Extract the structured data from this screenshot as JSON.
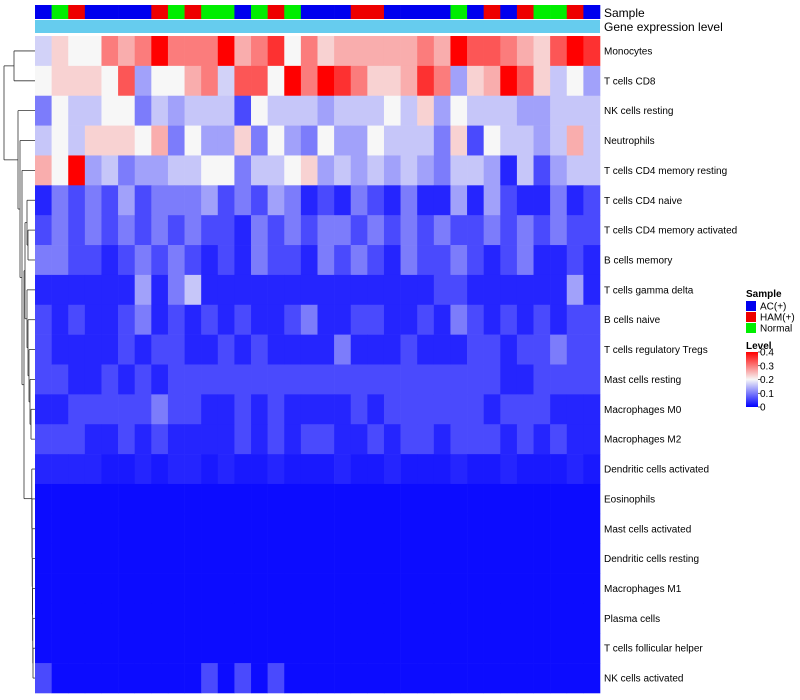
{
  "chart_data": {
    "type": "heatmap",
    "title": "",
    "annotations": {
      "sample_label": "Sample",
      "gene_label": "Gene expression level"
    },
    "columns": 34,
    "sample_groups": [
      "AC",
      "N",
      "H",
      "AC",
      "AC",
      "AC",
      "AC",
      "H",
      "N",
      "H",
      "N",
      "N",
      "AC",
      "N",
      "H",
      "N",
      "AC",
      "AC",
      "AC",
      "H",
      "H",
      "AC",
      "AC",
      "AC",
      "AC",
      "N",
      "AC",
      "H",
      "AC",
      "H",
      "N",
      "N",
      "H",
      "AC"
    ],
    "rows": [
      {
        "name": "Monocytes",
        "values": [
          0.17,
          0.23,
          0.2,
          0.2,
          0.3,
          0.26,
          0.3,
          0.4,
          0.3,
          0.3,
          0.3,
          0.4,
          0.26,
          0.3,
          0.36,
          0.2,
          0.3,
          0.23,
          0.26,
          0.26,
          0.26,
          0.26,
          0.26,
          0.3,
          0.26,
          0.4,
          0.33,
          0.33,
          0.3,
          0.26,
          0.23,
          0.33,
          0.4,
          0.36
        ]
      },
      {
        "name": "T cells CD8",
        "values": [
          0.2,
          0.23,
          0.23,
          0.23,
          0.2,
          0.33,
          0.13,
          0.2,
          0.2,
          0.26,
          0.3,
          0.17,
          0.33,
          0.33,
          0.2,
          0.4,
          0.3,
          0.4,
          0.36,
          0.3,
          0.23,
          0.23,
          0.26,
          0.36,
          0.3,
          0.13,
          0.23,
          0.26,
          0.4,
          0.33,
          0.23,
          0.16,
          0.2,
          0.13
        ]
      },
      {
        "name": "NK cells resting",
        "values": [
          0.1,
          0.2,
          0.16,
          0.16,
          0.2,
          0.2,
          0.1,
          0.16,
          0.13,
          0.16,
          0.16,
          0.16,
          0.06,
          0.2,
          0.16,
          0.16,
          0.16,
          0.13,
          0.16,
          0.16,
          0.16,
          0.2,
          0.16,
          0.23,
          0.13,
          0.2,
          0.16,
          0.16,
          0.16,
          0.13,
          0.13,
          0.16,
          0.16,
          0.16
        ]
      },
      {
        "name": "Neutrophils",
        "values": [
          0.16,
          0.2,
          0.16,
          0.23,
          0.23,
          0.23,
          0.2,
          0.26,
          0.1,
          0.2,
          0.13,
          0.13,
          0.23,
          0.1,
          0.2,
          0.13,
          0.1,
          0.2,
          0.13,
          0.13,
          0.2,
          0.16,
          0.16,
          0.16,
          0.1,
          0.23,
          0.06,
          0.2,
          0.16,
          0.16,
          0.13,
          0.16,
          0.26,
          0.16
        ]
      },
      {
        "name": "T cells CD4 memory resting",
        "values": [
          0.26,
          0.2,
          0.4,
          0.13,
          0.16,
          0.1,
          0.13,
          0.13,
          0.16,
          0.16,
          0.2,
          0.2,
          0.1,
          0.16,
          0.16,
          0.2,
          0.23,
          0.13,
          0.16,
          0.13,
          0.16,
          0.13,
          0.16,
          0.13,
          0.1,
          0.16,
          0.16,
          0.13,
          0.03,
          0.16,
          0.06,
          0.13,
          0.16,
          0.16
        ]
      },
      {
        "name": "T cells CD4 naive",
        "values": [
          0.03,
          0.1,
          0.06,
          0.1,
          0.06,
          0.13,
          0.06,
          0.1,
          0.1,
          0.1,
          0.13,
          0.06,
          0.1,
          0.06,
          0.13,
          0.1,
          0.03,
          0.06,
          0.03,
          0.1,
          0.06,
          0.03,
          0.1,
          0.03,
          0.03,
          0.13,
          0.03,
          0.13,
          0.06,
          0.03,
          0.03,
          0.1,
          0.03,
          0.06
        ]
      },
      {
        "name": "T cells CD4 memory activated",
        "values": [
          0.06,
          0.1,
          0.06,
          0.1,
          0.06,
          0.1,
          0.06,
          0.1,
          0.06,
          0.1,
          0.06,
          0.06,
          0.03,
          0.1,
          0.06,
          0.1,
          0.06,
          0.1,
          0.1,
          0.06,
          0.1,
          0.06,
          0.1,
          0.06,
          0.1,
          0.06,
          0.06,
          0.1,
          0.06,
          0.1,
          0.06,
          0.1,
          0.06,
          0.06
        ]
      },
      {
        "name": "B cells memory",
        "values": [
          0.1,
          0.1,
          0.06,
          0.06,
          0.03,
          0.06,
          0.1,
          0.06,
          0.1,
          0.06,
          0.03,
          0.06,
          0.03,
          0.1,
          0.06,
          0.06,
          0.03,
          0.1,
          0.06,
          0.1,
          0.06,
          0.03,
          0.1,
          0.06,
          0.06,
          0.1,
          0.06,
          0.03,
          0.06,
          0.1,
          0.03,
          0.03,
          0.06,
          0.03
        ]
      },
      {
        "name": "T cells gamma delta",
        "values": [
          0.03,
          0.03,
          0.03,
          0.03,
          0.03,
          0.03,
          0.13,
          0.03,
          0.1,
          0.16,
          0.03,
          0.03,
          0.03,
          0.03,
          0.03,
          0.03,
          0.03,
          0.03,
          0.03,
          0.03,
          0.03,
          0.03,
          0.03,
          0.03,
          0.06,
          0.06,
          0.03,
          0.03,
          0.03,
          0.03,
          0.03,
          0.03,
          0.13,
          0.03
        ]
      },
      {
        "name": "B cells naive",
        "values": [
          0.06,
          0.03,
          0.06,
          0.03,
          0.03,
          0.06,
          0.1,
          0.03,
          0.06,
          0.03,
          0.06,
          0.03,
          0.06,
          0.03,
          0.03,
          0.06,
          0.1,
          0.03,
          0.03,
          0.06,
          0.06,
          0.03,
          0.03,
          0.06,
          0.03,
          0.1,
          0.06,
          0.03,
          0.06,
          0.03,
          0.06,
          0.03,
          0.06,
          0.06
        ]
      },
      {
        "name": "T cells regulatory  Tregs",
        "values": [
          0.06,
          0.03,
          0.03,
          0.03,
          0.03,
          0.06,
          0.03,
          0.06,
          0.06,
          0.03,
          0.03,
          0.06,
          0.03,
          0.06,
          0.03,
          0.03,
          0.03,
          0.03,
          0.1,
          0.03,
          0.03,
          0.03,
          0.06,
          0.03,
          0.03,
          0.03,
          0.06,
          0.06,
          0.03,
          0.06,
          0.06,
          0.1,
          0.06,
          0.06
        ]
      },
      {
        "name": "Mast cells resting",
        "values": [
          0.06,
          0.06,
          0.03,
          0.03,
          0.06,
          0.03,
          0.06,
          0.03,
          0.06,
          0.06,
          0.06,
          0.06,
          0.06,
          0.06,
          0.06,
          0.06,
          0.06,
          0.06,
          0.06,
          0.06,
          0.06,
          0.06,
          0.06,
          0.06,
          0.06,
          0.06,
          0.06,
          0.06,
          0.03,
          0.03,
          0.06,
          0.06,
          0.06,
          0.06
        ]
      },
      {
        "name": "Macrophages M0",
        "values": [
          0.03,
          0.03,
          0.06,
          0.06,
          0.06,
          0.06,
          0.06,
          0.1,
          0.06,
          0.06,
          0.03,
          0.03,
          0.06,
          0.03,
          0.06,
          0.03,
          0.03,
          0.03,
          0.03,
          0.06,
          0.03,
          0.06,
          0.06,
          0.06,
          0.06,
          0.06,
          0.06,
          0.03,
          0.06,
          0.06,
          0.06,
          0.03,
          0.03,
          0.03
        ]
      },
      {
        "name": "Macrophages M2",
        "values": [
          0.06,
          0.06,
          0.06,
          0.03,
          0.03,
          0.06,
          0.03,
          0.06,
          0.03,
          0.03,
          0.03,
          0.03,
          0.06,
          0.03,
          0.06,
          0.03,
          0.06,
          0.06,
          0.03,
          0.03,
          0.06,
          0.03,
          0.06,
          0.06,
          0.03,
          0.06,
          0.06,
          0.06,
          0.03,
          0.06,
          0.03,
          0.06,
          0.03,
          0.03
        ]
      },
      {
        "name": "Dendritic cells activated",
        "values": [
          0.03,
          0.03,
          0.03,
          0.03,
          0.02,
          0.02,
          0.03,
          0.02,
          0.03,
          0.03,
          0.02,
          0.03,
          0.02,
          0.02,
          0.03,
          0.02,
          0.02,
          0.02,
          0.03,
          0.02,
          0.02,
          0.03,
          0.02,
          0.02,
          0.02,
          0.03,
          0.02,
          0.02,
          0.03,
          0.02,
          0.02,
          0.02,
          0.03,
          0.02
        ]
      },
      {
        "name": "Eosinophils",
        "values": [
          0.01,
          0.01,
          0.01,
          0.01,
          0.01,
          0.01,
          0.01,
          0.01,
          0.01,
          0.01,
          0.01,
          0.01,
          0.01,
          0.01,
          0.01,
          0.01,
          0.01,
          0.01,
          0.01,
          0.01,
          0.01,
          0.01,
          0.01,
          0.01,
          0.01,
          0.01,
          0.01,
          0.01,
          0.01,
          0.01,
          0.01,
          0.01,
          0.01,
          0.01
        ]
      },
      {
        "name": "Mast cells activated",
        "values": [
          0.01,
          0.01,
          0.01,
          0.01,
          0.01,
          0.01,
          0.01,
          0.01,
          0.01,
          0.01,
          0.01,
          0.01,
          0.01,
          0.01,
          0.01,
          0.01,
          0.01,
          0.01,
          0.01,
          0.01,
          0.01,
          0.01,
          0.01,
          0.01,
          0.01,
          0.01,
          0.01,
          0.01,
          0.01,
          0.01,
          0.01,
          0.01,
          0.01,
          0.01
        ]
      },
      {
        "name": "Dendritic cells resting",
        "values": [
          0.01,
          0.01,
          0.01,
          0.01,
          0.01,
          0.01,
          0.01,
          0.01,
          0.01,
          0.01,
          0.01,
          0.01,
          0.01,
          0.01,
          0.01,
          0.01,
          0.01,
          0.01,
          0.01,
          0.01,
          0.01,
          0.01,
          0.01,
          0.01,
          0.01,
          0.01,
          0.01,
          0.01,
          0.01,
          0.01,
          0.01,
          0.01,
          0.01,
          0.01
        ]
      },
      {
        "name": "Macrophages M1",
        "values": [
          0.01,
          0.01,
          0.01,
          0.01,
          0.01,
          0.01,
          0.01,
          0.01,
          0.01,
          0.01,
          0.01,
          0.01,
          0.01,
          0.01,
          0.01,
          0.01,
          0.01,
          0.01,
          0.01,
          0.01,
          0.01,
          0.01,
          0.01,
          0.01,
          0.01,
          0.01,
          0.01,
          0.01,
          0.01,
          0.01,
          0.01,
          0.01,
          0.01,
          0.01
        ]
      },
      {
        "name": "Plasma cells",
        "values": [
          0.01,
          0.01,
          0.01,
          0.01,
          0.01,
          0.01,
          0.01,
          0.01,
          0.01,
          0.01,
          0.01,
          0.01,
          0.01,
          0.01,
          0.01,
          0.01,
          0.01,
          0.01,
          0.01,
          0.01,
          0.01,
          0.01,
          0.01,
          0.01,
          0.01,
          0.01,
          0.01,
          0.01,
          0.01,
          0.01,
          0.01,
          0.01,
          0.01,
          0.01
        ]
      },
      {
        "name": "T cells follicular helper",
        "values": [
          0.01,
          0.01,
          0.01,
          0.01,
          0.01,
          0.01,
          0.01,
          0.01,
          0.01,
          0.01,
          0.01,
          0.01,
          0.01,
          0.01,
          0.01,
          0.01,
          0.01,
          0.01,
          0.01,
          0.01,
          0.01,
          0.01,
          0.01,
          0.01,
          0.01,
          0.01,
          0.01,
          0.01,
          0.01,
          0.01,
          0.01,
          0.01,
          0.01,
          0.01
        ]
      },
      {
        "name": "NK cells activated",
        "values": [
          0.06,
          0.01,
          0.01,
          0.01,
          0.01,
          0.01,
          0.01,
          0.01,
          0.01,
          0.01,
          0.06,
          0.01,
          0.06,
          0.01,
          0.06,
          0.01,
          0.01,
          0.01,
          0.01,
          0.01,
          0.01,
          0.01,
          0.01,
          0.01,
          0.01,
          0.01,
          0.01,
          0.01,
          0.01,
          0.01,
          0.01,
          0.01,
          0.01,
          0.01
        ]
      }
    ],
    "color_scale": {
      "min": 0,
      "mid": 0.2,
      "max": 0.4,
      "low": "#0000ff",
      "midColor": "#f7f7f7",
      "high": "#ff0000"
    },
    "legend": {
      "sample_title": "Sample",
      "sample_items": [
        {
          "key": "AC",
          "label": "AC(+)",
          "color": "#0000ee"
        },
        {
          "key": "H",
          "label": "HAM(+)",
          "color": "#ee0000"
        },
        {
          "key": "N",
          "label": "Normal",
          "color": "#00ee00"
        }
      ],
      "level_title": "Level",
      "level_ticks": [
        "0.4",
        "0.3",
        "0.2",
        "0.1",
        "0"
      ],
      "level_tick_values": [
        0.4,
        0.3,
        0.2,
        0.1,
        0
      ]
    },
    "annotation_colors": {
      "gene_bar": "#66ccee",
      "dendrogram": "#333333"
    }
  }
}
